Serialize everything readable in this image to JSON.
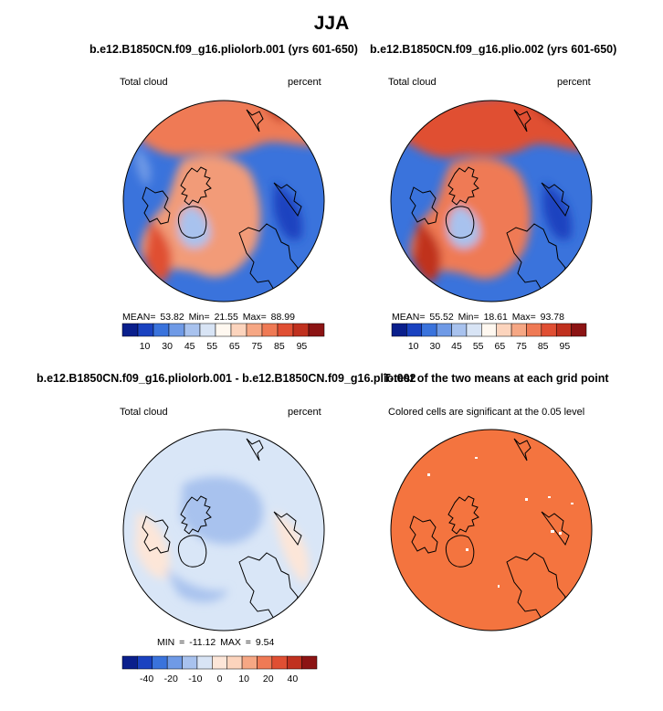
{
  "figure": {
    "title": "JJA",
    "colors": {
      "ocean_panel_base": "#3a73dc",
      "land_panel_base": "#f07a50",
      "diff_base": "#d9e6f7",
      "ttest_fill": "#f4743f",
      "coastline": "#000000"
    }
  },
  "panels": [
    {
      "id": "p1",
      "title": "b.e12.B1850CN.f09_g16.pliolorb.001 (yrs 601-650)",
      "left_label": "Total cloud",
      "right_label": "percent",
      "stats": {
        "mean_label": "MEAN=",
        "mean": "53.82",
        "min_label": "Min=",
        "min": "21.55",
        "max_label": "Max=",
        "max": "88.99"
      }
    },
    {
      "id": "p2",
      "title": "b.e12.B1850CN.f09_g16.plio.002 (yrs 601-650)",
      "left_label": "Total cloud",
      "right_label": "percent",
      "stats": {
        "mean_label": "MEAN=",
        "mean": "55.52",
        "min_label": "Min=",
        "min": "18.61",
        "max_label": "Max=",
        "max": "93.78"
      }
    },
    {
      "id": "p3",
      "title": "b.e12.B1850CN.f09_g16.pliolorb.001 - b.e12.B1850CN.f09_g16.plio.002",
      "left_label": "Total cloud",
      "right_label": "percent",
      "stats": {
        "min_label": "MIN =",
        "min": "-11.12",
        "max_label": "MAX =",
        "max": "9.54"
      }
    },
    {
      "id": "p4",
      "title": "T-test of the two means at each grid point",
      "left_label": "Colored cells are significant at the 0.05 level"
    }
  ],
  "chart_data": [
    {
      "type": "heatmap",
      "title": "b.e12.B1850CN.f09_g16.pliolorb.001 (yrs 601-650)",
      "variable": "Total cloud",
      "units": "percent",
      "projection": "polar stereographic (north)",
      "colorbar": {
        "ticks": [
          "10",
          "30",
          "45",
          "55",
          "65",
          "75",
          "85",
          "95"
        ],
        "colors": [
          "#0a1f8c",
          "#1a42c0",
          "#3a73dc",
          "#6f9ae6",
          "#a8c2ee",
          "#d8e4f5",
          "#fff8f0",
          "#fcd4bd",
          "#f6a784",
          "#ef7a55",
          "#e04f33",
          "#c0311f",
          "#8c1414"
        ]
      },
      "mean": 53.82,
      "min": 21.55,
      "max": 88.99
    },
    {
      "type": "heatmap",
      "title": "b.e12.B1850CN.f09_g16.plio.002 (yrs 601-650)",
      "variable": "Total cloud",
      "units": "percent",
      "projection": "polar stereographic (north)",
      "colorbar": {
        "ticks": [
          "10",
          "30",
          "45",
          "55",
          "65",
          "75",
          "85",
          "95"
        ],
        "colors": [
          "#0a1f8c",
          "#1a42c0",
          "#3a73dc",
          "#6f9ae6",
          "#a8c2ee",
          "#d8e4f5",
          "#fff8f0",
          "#fcd4bd",
          "#f6a784",
          "#ef7a55",
          "#e04f33",
          "#c0311f",
          "#8c1414"
        ]
      },
      "mean": 55.52,
      "min": 18.61,
      "max": 93.78
    },
    {
      "type": "heatmap",
      "title": "b.e12.B1850CN.f09_g16.pliolorb.001 - b.e12.B1850CN.f09_g16.plio.002",
      "variable": "Total cloud",
      "units": "percent",
      "projection": "polar stereographic (north)",
      "colorbar": {
        "ticks": [
          "-40",
          "-20",
          "-10",
          "0",
          "10",
          "20",
          "40"
        ],
        "colors": [
          "#0a1f8c",
          "#1a42c0",
          "#3a73dc",
          "#6f9ae6",
          "#a8c2ee",
          "#d8e4f5",
          "#fde6d8",
          "#fcd4bd",
          "#f6a784",
          "#ef7a55",
          "#e04f33",
          "#c0311f",
          "#8c1414"
        ]
      },
      "min": -11.12,
      "max": 9.54
    },
    {
      "type": "heatmap",
      "title": "T-test of the two means at each grid point",
      "note": "Colored cells are significant at the 0.05 level",
      "projection": "polar stereographic (north)"
    }
  ]
}
